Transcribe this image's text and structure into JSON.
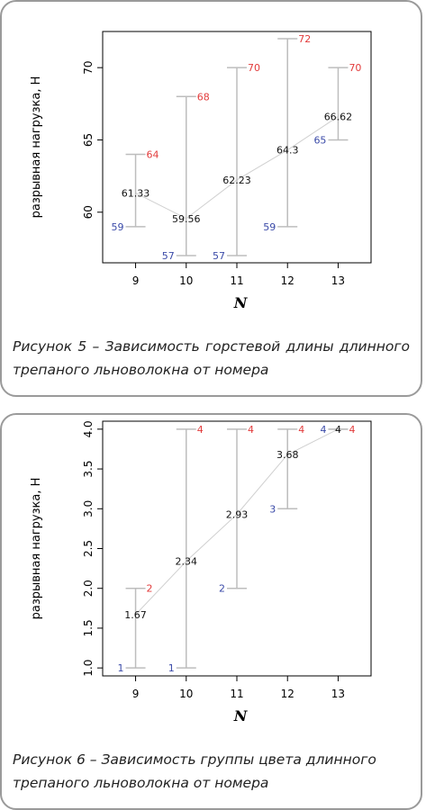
{
  "chart_data": [
    {
      "type": "errorbar",
      "x": [
        9,
        10,
        11,
        12,
        13
      ],
      "xlabel": "N",
      "ylabel": "разрывная нагрузка, Н",
      "xlim": [
        8.35,
        13.65
      ],
      "ylim": [
        56.5,
        72.5
      ],
      "yticks": [
        60,
        65,
        70
      ],
      "tick_labels_y": [
        "60",
        "65",
        "70"
      ],
      "tick_labels_x": [
        "9",
        "10",
        "11",
        "12",
        "13"
      ],
      "mean": [
        61.33,
        59.56,
        62.23,
        64.3,
        66.62
      ],
      "mean_labels": [
        "61.33",
        "59.56",
        "62.23",
        "64.3",
        "66.62"
      ],
      "min": [
        59,
        57,
        57,
        59,
        65
      ],
      "min_labels": [
        "59",
        "57",
        "57",
        "59",
        "65"
      ],
      "max": [
        64,
        68,
        70,
        72,
        70
      ],
      "max_labels": [
        "64",
        "68",
        "70",
        "72",
        "70"
      ],
      "colors": {
        "max": "#e23b3b",
        "min": "#3a4aa8",
        "mean": "#111111",
        "bars": "#bdbdbd",
        "line": "#d0d0d0"
      }
    },
    {
      "type": "errorbar",
      "x": [
        9,
        10,
        11,
        12,
        13
      ],
      "xlabel": "N",
      "ylabel": "разрывная нагрузка, Н",
      "xlim": [
        8.35,
        13.65
      ],
      "ylim": [
        0.9,
        4.1
      ],
      "yticks": [
        1.0,
        1.5,
        2.0,
        2.5,
        3.0,
        3.5,
        4.0
      ],
      "tick_labels_y": [
        "1.0",
        "1.5",
        "2.0",
        "2.5",
        "3.0",
        "3.5",
        "4.0"
      ],
      "tick_labels_x": [
        "9",
        "10",
        "11",
        "12",
        "13"
      ],
      "mean": [
        1.67,
        2.34,
        2.93,
        3.68,
        4
      ],
      "mean_labels": [
        "1.67",
        "2.34",
        "2.93",
        "3.68",
        "4"
      ],
      "min": [
        1,
        1,
        2,
        3,
        4
      ],
      "min_labels": [
        "1",
        "1",
        "2",
        "3",
        "4"
      ],
      "max": [
        2,
        4,
        4,
        4,
        4
      ],
      "max_labels": [
        "2",
        "4",
        "4",
        "4",
        "4"
      ],
      "colors": {
        "max": "#e23b3b",
        "min": "#3a4aa8",
        "mean": "#111111",
        "bars": "#bdbdbd",
        "line": "#d0d0d0"
      }
    }
  ],
  "captions": {
    "fig5": "Рисунок 5 – Зависимость горстевой длины длинного трепаного льноволокна от номера",
    "fig6": "Рисунок 6 – Зависимость группы цвета длинного трепаного льноволокна от номера"
  }
}
